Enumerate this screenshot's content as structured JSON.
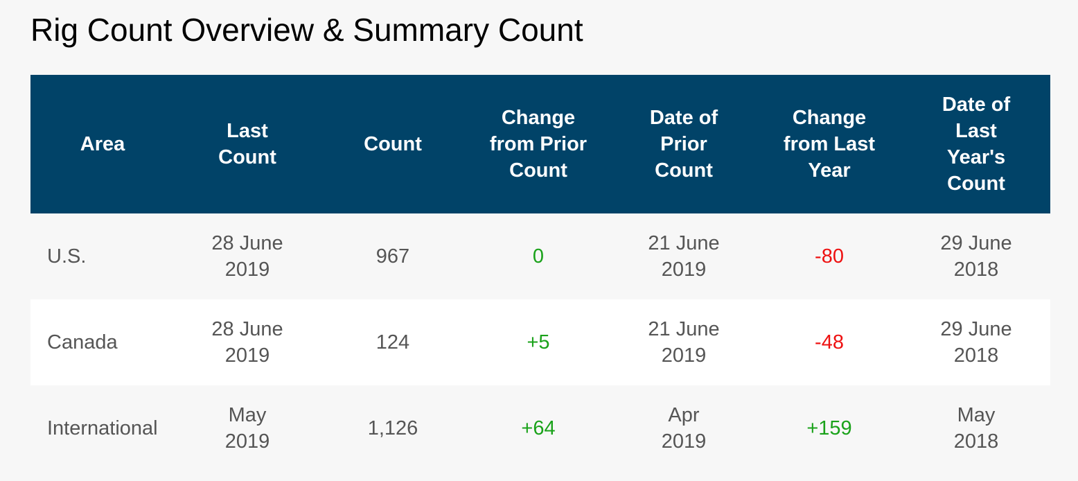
{
  "page": {
    "title": "Rig Count Overview & Summary Count"
  },
  "colors": {
    "header_bg": "#014368",
    "header_text": "#ffffff",
    "body_text": "#555555",
    "positive": "#1aa21a",
    "negative": "#ee1111",
    "row_alt": "#ffffff",
    "page_bg": "#f7f7f7"
  },
  "table": {
    "headers": [
      [
        "Area"
      ],
      [
        "Last",
        "Count"
      ],
      [
        "Count"
      ],
      [
        "Change",
        "from Prior",
        "Count"
      ],
      [
        "Date of",
        "Prior",
        "Count"
      ],
      [
        "Change",
        "from Last",
        "Year"
      ],
      [
        "Date of",
        "Last",
        "Year's",
        "Count"
      ]
    ],
    "rows": [
      {
        "area": "U.S.",
        "last_count": [
          "28 June",
          "2019"
        ],
        "count": "967",
        "change_prior": "0",
        "change_prior_sign": "zero",
        "date_prior": [
          "21 June",
          "2019"
        ],
        "change_last_year": "-80",
        "change_last_year_sign": "neg",
        "date_last_year": [
          "29 June",
          "2018"
        ]
      },
      {
        "area": "Canada",
        "last_count": [
          "28 June",
          "2019"
        ],
        "count": "124",
        "change_prior": "+5",
        "change_prior_sign": "pos",
        "date_prior": [
          "21 June",
          "2019"
        ],
        "change_last_year": "-48",
        "change_last_year_sign": "neg",
        "date_last_year": [
          "29 June",
          "2018"
        ]
      },
      {
        "area": "International",
        "last_count": [
          "May",
          "2019"
        ],
        "count": "1,126",
        "change_prior": "+64",
        "change_prior_sign": "pos",
        "date_prior": [
          "Apr",
          "2019"
        ],
        "change_last_year": "+159",
        "change_last_year_sign": "pos",
        "date_last_year": [
          "May",
          "2018"
        ]
      }
    ]
  }
}
